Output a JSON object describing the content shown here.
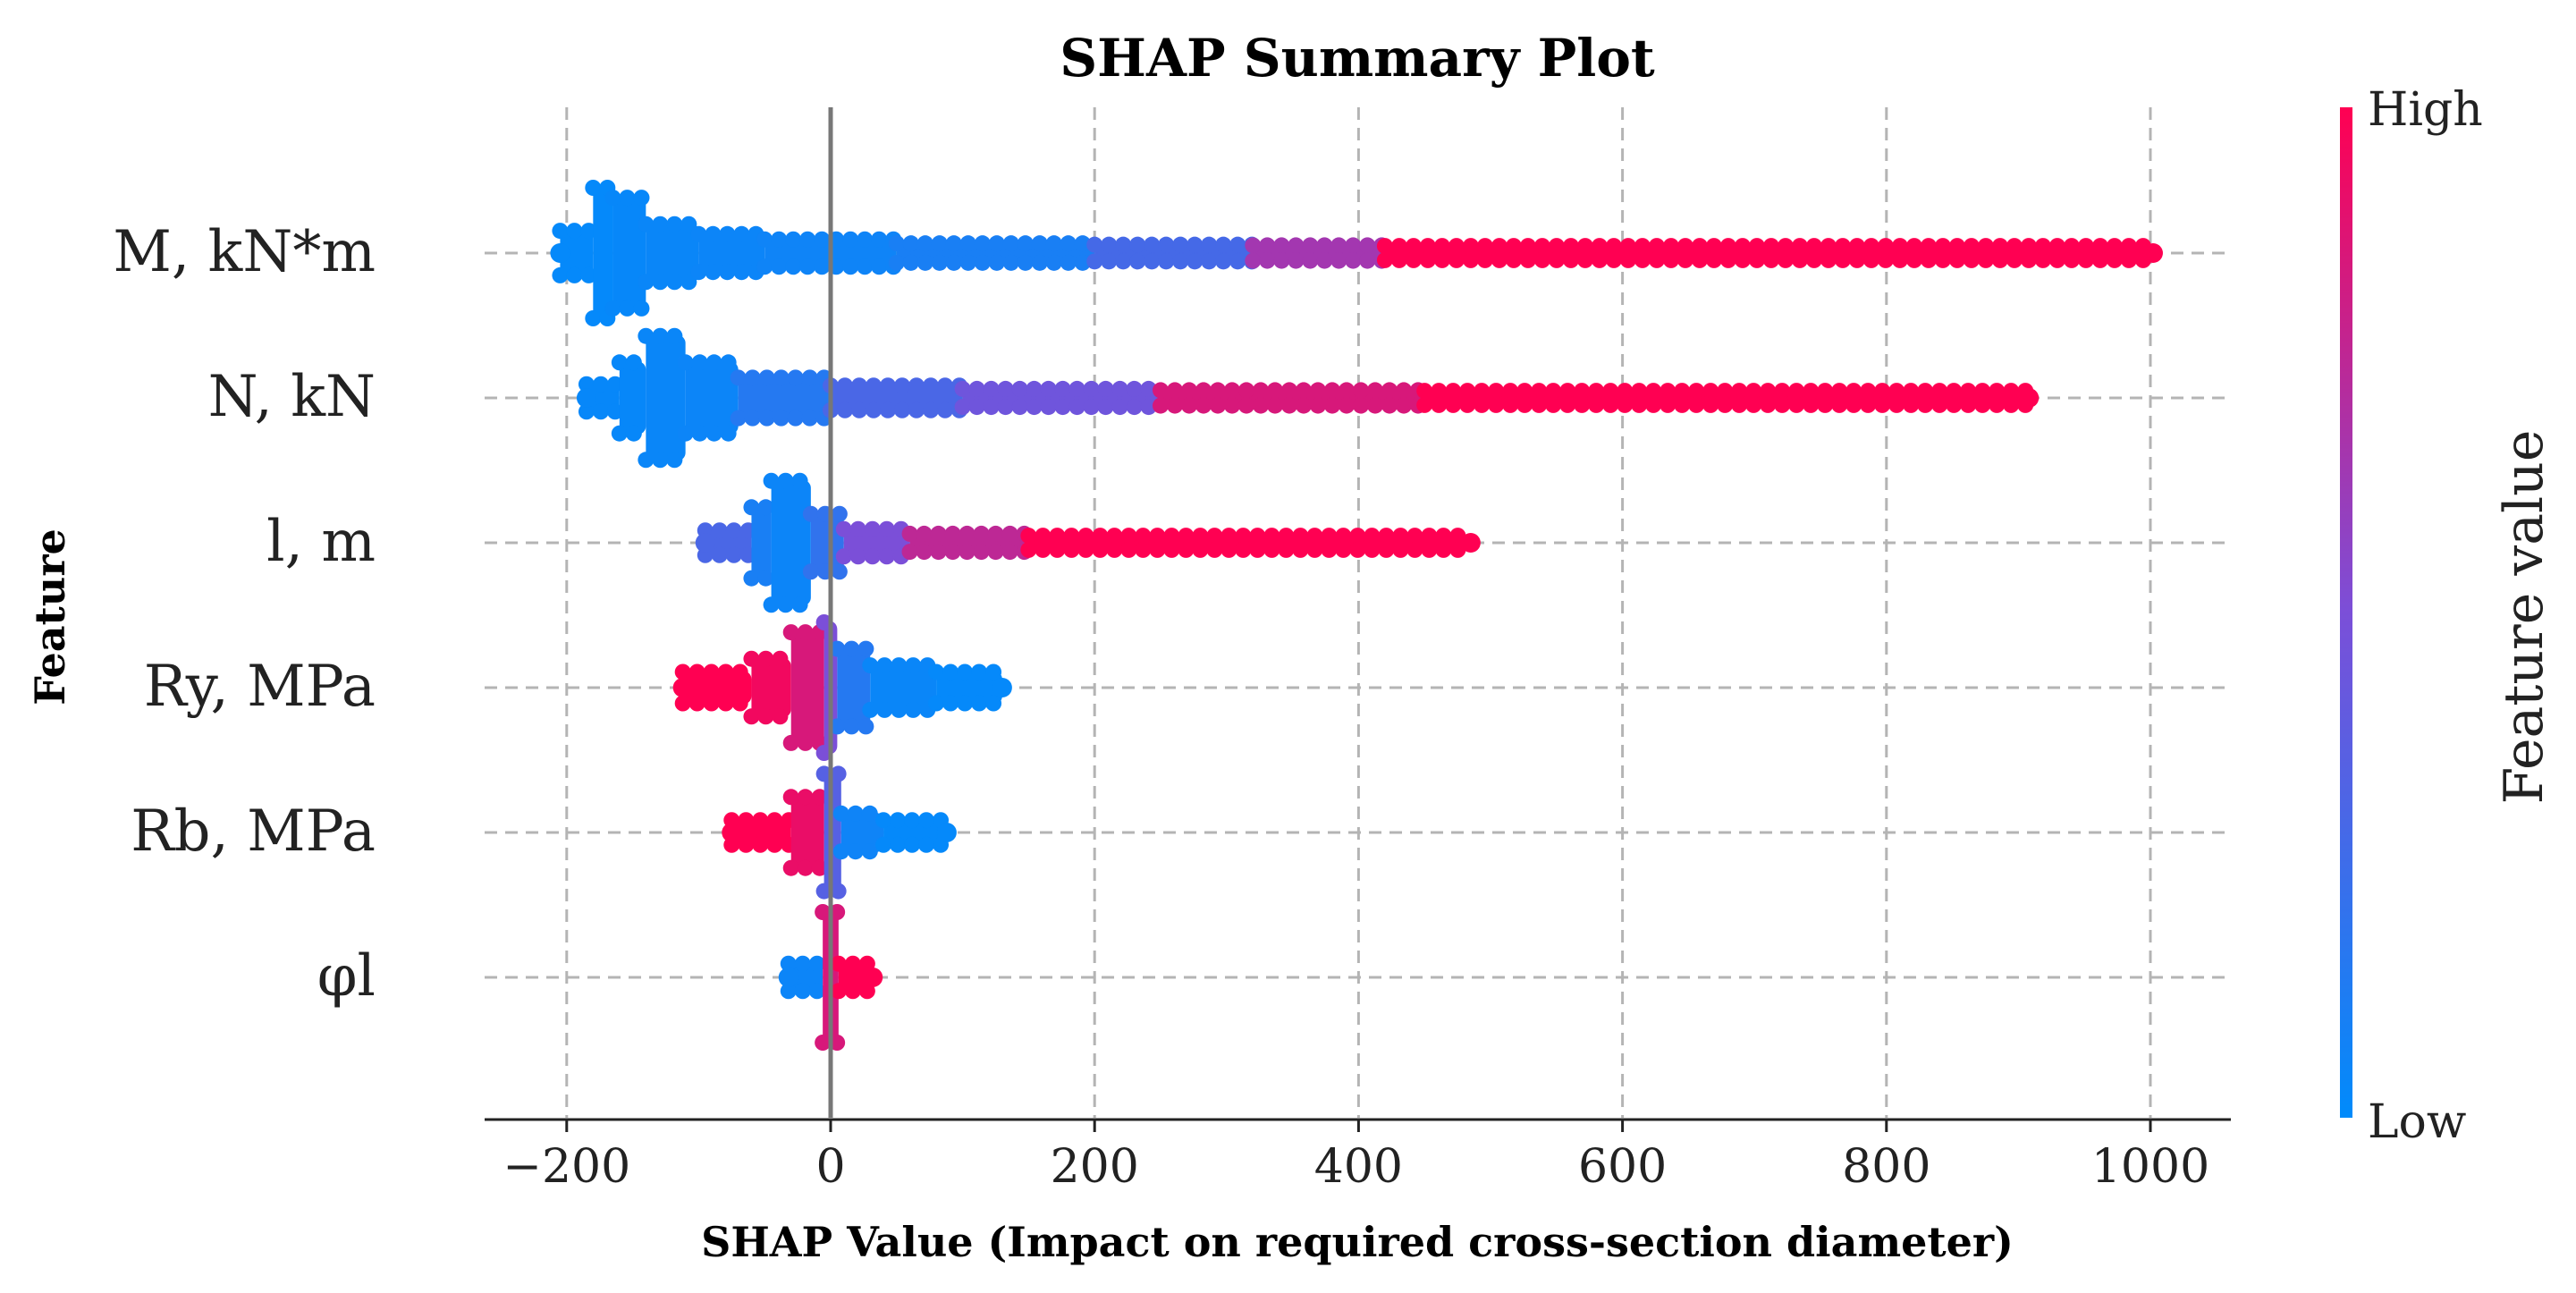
{
  "chart_data": {
    "type": "scatter",
    "subtype": "shap-beeswarm",
    "title": "SHAP Summary Plot",
    "xlabel": "SHAP Value (Impact on required cross-section diameter)",
    "ylabel": "Feature",
    "xlim": [
      -265,
      1065
    ],
    "xticks": [
      -200,
      0,
      200,
      400,
      600,
      800,
      1000
    ],
    "xtick_labels": [
      "−200",
      "0",
      "200",
      "400",
      "600",
      "800",
      "1000"
    ],
    "grid": true,
    "colorbar": {
      "label": "Feature value",
      "high_label": "High",
      "low_label": "Low",
      "low_color": "#008bfb",
      "mid_color": "#7b4fd8",
      "high_color": "#ff0052"
    },
    "features": [
      {
        "name": "M, kN*m",
        "min": -205,
        "max": 1002,
        "segments": [
          {
            "from": -205,
            "to": -180,
            "height": 0.35,
            "color": 0.02
          },
          {
            "from": -180,
            "to": -165,
            "height": 1.0,
            "color": 0.02
          },
          {
            "from": -165,
            "to": -140,
            "height": 0.85,
            "color": 0.03
          },
          {
            "from": -140,
            "to": -100,
            "height": 0.45,
            "color": 0.04
          },
          {
            "from": -100,
            "to": -50,
            "height": 0.3,
            "color": 0.05
          },
          {
            "from": -50,
            "to": 50,
            "height": 0.22,
            "color": 0.06
          },
          {
            "from": 50,
            "to": 200,
            "height": 0.16,
            "color": 0.1
          },
          {
            "from": 200,
            "to": 320,
            "height": 0.14,
            "color": 0.28
          },
          {
            "from": 320,
            "to": 420,
            "height": 0.13,
            "color": 0.65
          },
          {
            "from": 420,
            "to": 1002,
            "height": 0.12,
            "color": 1.0
          }
        ]
      },
      {
        "name": "N, kN",
        "min": -185,
        "max": 908,
        "segments": [
          {
            "from": -185,
            "to": -160,
            "height": 0.22,
            "color": 0.03
          },
          {
            "from": -160,
            "to": -140,
            "height": 0.55,
            "color": 0.03
          },
          {
            "from": -140,
            "to": -110,
            "height": 0.95,
            "color": 0.04
          },
          {
            "from": -110,
            "to": -70,
            "height": 0.55,
            "color": 0.05
          },
          {
            "from": -70,
            "to": 0,
            "height": 0.32,
            "color": 0.15
          },
          {
            "from": 0,
            "to": 100,
            "height": 0.2,
            "color": 0.3
          },
          {
            "from": 100,
            "to": 250,
            "height": 0.15,
            "color": 0.45
          },
          {
            "from": 250,
            "to": 450,
            "height": 0.13,
            "color": 0.85
          },
          {
            "from": 450,
            "to": 908,
            "height": 0.12,
            "color": 1.0
          }
        ]
      },
      {
        "name": "l, m",
        "min": -95,
        "max": 485,
        "segments": [
          {
            "from": -95,
            "to": -60,
            "height": 0.2,
            "color": 0.3
          },
          {
            "from": -60,
            "to": -45,
            "height": 0.55,
            "color": 0.1
          },
          {
            "from": -45,
            "to": -15,
            "height": 0.95,
            "color": 0.05
          },
          {
            "from": -15,
            "to": 10,
            "height": 0.45,
            "color": 0.2
          },
          {
            "from": 10,
            "to": 60,
            "height": 0.22,
            "color": 0.5
          },
          {
            "from": 60,
            "to": 150,
            "height": 0.15,
            "color": 0.75
          },
          {
            "from": 150,
            "to": 485,
            "height": 0.12,
            "color": 1.0
          }
        ]
      },
      {
        "name": "Ry, MPa",
        "min": -112,
        "max": 130,
        "segments": [
          {
            "from": -112,
            "to": -60,
            "height": 0.25,
            "color": 1.0
          },
          {
            "from": -60,
            "to": -30,
            "height": 0.45,
            "color": 0.95
          },
          {
            "from": -30,
            "to": -5,
            "height": 0.85,
            "color": 0.85
          },
          {
            "from": -5,
            "to": 5,
            "height": 1.0,
            "color": 0.5
          },
          {
            "from": 5,
            "to": 30,
            "height": 0.6,
            "color": 0.15
          },
          {
            "from": 30,
            "to": 80,
            "height": 0.35,
            "color": 0.04
          },
          {
            "from": 80,
            "to": 130,
            "height": 0.25,
            "color": 0.02
          }
        ]
      },
      {
        "name": "Rb, MPa",
        "min": -75,
        "max": 88,
        "segments": [
          {
            "from": -75,
            "to": -30,
            "height": 0.2,
            "color": 1.0
          },
          {
            "from": -30,
            "to": -5,
            "height": 0.55,
            "color": 0.92
          },
          {
            "from": -5,
            "to": 8,
            "height": 0.9,
            "color": 0.35
          },
          {
            "from": 8,
            "to": 40,
            "height": 0.3,
            "color": 0.06
          },
          {
            "from": 40,
            "to": 88,
            "height": 0.2,
            "color": 0.02
          }
        ]
      },
      {
        "name": "φl",
        "min": -32,
        "max": 32,
        "segments": [
          {
            "from": -32,
            "to": -6,
            "height": 0.22,
            "color": 0.05
          },
          {
            "from": -6,
            "to": 6,
            "height": 1.0,
            "color": 0.85
          },
          {
            "from": 6,
            "to": 32,
            "height": 0.22,
            "color": 1.0
          }
        ]
      }
    ]
  }
}
